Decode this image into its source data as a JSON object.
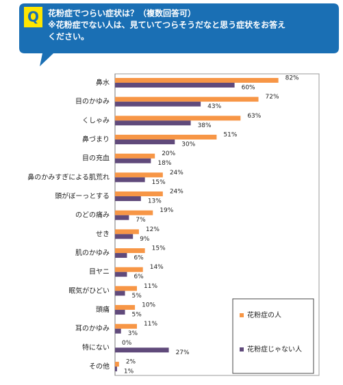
{
  "header": {
    "icon": "Q",
    "lines": [
      "花粉症でつらい症状は？（複数回答可）",
      "※花粉症でない人は、見ていてつらそうだなと思う症状をお答え",
      "ください。"
    ]
  },
  "chart_data": {
    "type": "bar",
    "orientation": "horizontal",
    "categories": [
      "鼻水",
      "目のかゆみ",
      "くしゃみ",
      "鼻づまり",
      "目の充血",
      "鼻のかみすぎによる肌荒れ",
      "頭がぼーっとする",
      "のどの痛み",
      "せき",
      "肌のかゆみ",
      "目ヤニ",
      "眠気がひどい",
      "頭痛",
      "耳のかゆみ",
      "特にない",
      "その他"
    ],
    "series": [
      {
        "name": "花粉症の人",
        "color": "#f79646",
        "values": [
          82,
          72,
          63,
          51,
          20,
          24,
          24,
          19,
          12,
          15,
          14,
          11,
          10,
          11,
          0,
          2
        ],
        "value_labels": [
          "82%",
          "72%",
          "63%",
          "51%",
          "20%",
          "24%",
          "24%",
          "19%",
          "12%",
          "15%",
          "14%",
          "11%",
          "10%",
          "11%",
          "0%",
          "2%"
        ]
      },
      {
        "name": "花粉症じゃない人",
        "color": "#604a7b",
        "values": [
          60,
          43,
          38,
          30,
          18,
          15,
          13,
          7,
          9,
          6,
          6,
          5,
          5,
          3,
          27,
          1
        ],
        "value_labels": [
          "60%",
          "43%",
          "38%",
          "30%",
          "18%",
          "15%",
          "13%",
          "7%",
          "9%",
          "6%",
          "6%",
          "5%",
          "5%",
          "3%",
          "27%",
          "1%"
        ]
      }
    ],
    "xlim": [
      0,
      100
    ],
    "legend": "bottom-right"
  }
}
